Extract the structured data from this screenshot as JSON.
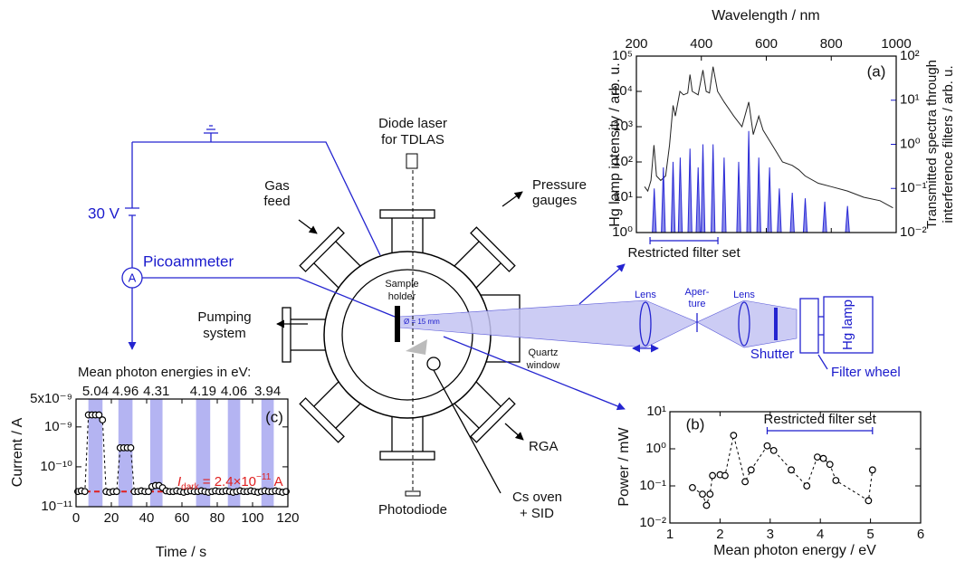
{
  "diagram": {
    "laser": [
      "Diode laser",
      "for TDLAS"
    ],
    "pressure": [
      "Pressure",
      "gauges"
    ],
    "gas": [
      "Gas",
      "feed"
    ],
    "voltage": "30 V",
    "ammeter": "Picoammeter",
    "ammeter_symbol": "A",
    "sample": [
      "Sample",
      "holder"
    ],
    "diameter": "Ø = 15 mm",
    "pumping": [
      "Pumping",
      "system"
    ],
    "window": [
      "Quartz",
      "window"
    ],
    "lens1": "Lens",
    "aperture": [
      "Aper-",
      "ture"
    ],
    "lens2": "Lens",
    "shutter": "Shutter",
    "lamp": "Hg lamp",
    "filter_wheel": "Filter wheel",
    "rga": "RGA",
    "oven": [
      "Cs oven",
      "+ SID"
    ],
    "photodiode": "Photodiode"
  },
  "chart_data": [
    {
      "type": "line",
      "label": "(a)",
      "x_label": "Wavelength / nm",
      "x_axis_position": "top",
      "y_label": "Hg lamp intensity / arb. u.",
      "y2_label": [
        "Transmitted spectra through",
        "interference filters / arb. u."
      ],
      "y2_color": "#1a1acc",
      "annotation": "Restricted filter set",
      "annotation_range": [
        242,
        451
      ],
      "xlim": [
        200,
        1000
      ],
      "xticks": [
        200,
        400,
        600,
        800,
        1000
      ],
      "log_y": true,
      "ylim": [
        1,
        100000
      ],
      "yticks": [
        {
          "value": 1,
          "label": "10⁰"
        },
        {
          "value": 10,
          "label": "10¹"
        },
        {
          "value": 100,
          "label": "10²"
        },
        {
          "value": 1000,
          "label": "10³"
        },
        {
          "value": 10000,
          "label": "10⁴"
        },
        {
          "value": 100000,
          "label": "10⁵"
        }
      ],
      "log_y2": true,
      "y2lim": [
        0.01,
        100
      ],
      "y2ticks": [
        {
          "value": 0.01,
          "label": "10⁻²"
        },
        {
          "value": 0.1,
          "label": "10⁻¹"
        },
        {
          "value": 1,
          "label": "10⁰"
        },
        {
          "value": 10,
          "label": "10¹"
        },
        {
          "value": 100,
          "label": "10²"
        }
      ],
      "series": [
        {
          "color": "#222222",
          "x": [
            225,
            235,
            245,
            254,
            262,
            275,
            290,
            302,
            313,
            320,
            334,
            345,
            358,
            365,
            372,
            390,
            405,
            415,
            425,
            436,
            450,
            470,
            500,
            525,
            546,
            560,
            577,
            590,
            610,
            630,
            650,
            680,
            700,
            720,
            760,
            800,
            850,
            900,
            950,
            990
          ],
          "values": [
            20,
            15,
            30,
            300,
            40,
            30,
            40,
            300,
            4000,
            2000,
            10000,
            8000,
            9000,
            30000,
            10000,
            8000,
            40000,
            10000,
            9000,
            50000,
            10000,
            5000,
            2000,
            1000,
            5000,
            600,
            2000,
            800,
            400,
            200,
            100,
            80,
            60,
            40,
            25,
            20,
            15,
            10,
            8,
            5
          ]
        },
        {
          "color": "#2a2ad6",
          "fill": "#8a8aea",
          "axis": "y2",
          "x": [
            249,
            255,
            261,
            277,
            283,
            289,
            307,
            313,
            319,
            329,
            335,
            341,
            359,
            365,
            371,
            384,
            390,
            396,
            399,
            405,
            411,
            430,
            436,
            442,
            464,
            470,
            476,
            509,
            515,
            521,
            540,
            546,
            552,
            571,
            577,
            583,
            604,
            610,
            616,
            634,
            640,
            646,
            674,
            680,
            686,
            714,
            720,
            726,
            774,
            780,
            786,
            844,
            850,
            856
          ],
          "values": [
            0.01,
            0.1,
            0.01,
            0.01,
            0.3,
            0.01,
            0.01,
            0.4,
            0.01,
            0.01,
            0.5,
            0.01,
            0.01,
            0.8,
            0.01,
            0.01,
            0.3,
            0.01,
            0.01,
            1,
            0.01,
            0.01,
            1,
            0.01,
            0.01,
            0.5,
            0.01,
            0.01,
            0.4,
            0.01,
            0.01,
            2,
            0.01,
            0.01,
            0.5,
            0.01,
            0.01,
            0.3,
            0.01,
            0.01,
            0.1,
            0.01,
            0.01,
            0.08,
            0.01,
            0.01,
            0.06,
            0.01,
            0.01,
            0.05,
            0.01,
            0.01,
            0.04,
            0.01
          ]
        }
      ]
    },
    {
      "type": "scatter",
      "label": "(b)",
      "x_label": "Mean photon energy / eV",
      "y_label": "Power / mW",
      "annotation": "Restricted filter set",
      "annotation_range": [
        2.94,
        5.04
      ],
      "annotation_color": "#1a1acc",
      "xlim": [
        1,
        6
      ],
      "xticks": [
        1,
        2,
        3,
        4,
        5,
        6
      ],
      "log_y": true,
      "ylim": [
        0.01,
        10
      ],
      "yticks": [
        {
          "value": 0.01,
          "label": "10⁻²"
        },
        {
          "value": 0.1,
          "label": "10⁻¹"
        },
        {
          "value": 1,
          "label": "10⁰"
        },
        {
          "value": 10,
          "label": "10¹"
        }
      ],
      "line_style": "dashed",
      "color": "#000000",
      "marker_fill": "#ffffff",
      "x": [
        1.45,
        1.65,
        1.73,
        1.8,
        1.85,
        2.0,
        2.1,
        2.27,
        2.5,
        2.62,
        2.94,
        3.07,
        3.42,
        3.73,
        3.94,
        4.06,
        4.19,
        4.31,
        4.96,
        5.04
      ],
      "values": [
        0.09,
        0.06,
        0.03,
        0.06,
        0.19,
        0.2,
        0.19,
        2.3,
        0.13,
        0.27,
        1.2,
        0.9,
        0.27,
        0.1,
        0.6,
        0.55,
        0.38,
        0.14,
        0.04,
        0.27
      ]
    },
    {
      "type": "scatter",
      "label": "(c)",
      "x_label": "Time / s",
      "y_label": "Current / A",
      "bands_title": "Mean photon energies in eV:",
      "band_color": "#b4b4f2",
      "band_text_color": "#1a1acc",
      "bands": [
        {
          "label": "5.04",
          "start": 7,
          "end": 15
        },
        {
          "label": "4.96",
          "start": 24,
          "end": 32
        },
        {
          "label": "4.31",
          "start": 42,
          "end": 49
        },
        {
          "label": "4.19",
          "start": 68,
          "end": 76
        },
        {
          "label": "4.06",
          "start": 86,
          "end": 93
        },
        {
          "label": "3.94",
          "start": 105,
          "end": 112
        }
      ],
      "dark_current": 2.4e-11,
      "dark_color": "#e02020",
      "dark_label": [
        "I",
        "dark",
        " = 2.4×10",
        "−11",
        " A"
      ],
      "xlim": [
        0,
        120
      ],
      "xticks": [
        0,
        20,
        40,
        60,
        80,
        100,
        120
      ],
      "log_y": true,
      "ylim": [
        1e-11,
        5e-09
      ],
      "yticks": [
        {
          "value": 1e-11,
          "label": "10⁻¹¹"
        },
        {
          "value": 1e-10,
          "label": "10⁻¹⁰"
        },
        {
          "value": 1e-09,
          "label": "10⁻⁹"
        },
        {
          "value": 5e-09,
          "label": "5x10⁻⁹"
        }
      ],
      "line_style": "dashed",
      "color": "#000000",
      "marker_fill": "#ffffff",
      "x": [
        1,
        3,
        5,
        7,
        9,
        11,
        13,
        15,
        17,
        19,
        21,
        23,
        25,
        27,
        29,
        31,
        33,
        35,
        37,
        39,
        41,
        43,
        45,
        47,
        49,
        51,
        53,
        55,
        57,
        59,
        61,
        63,
        65,
        67,
        69,
        71,
        73,
        75,
        77,
        79,
        81,
        83,
        85,
        87,
        89,
        91,
        93,
        95,
        97,
        99,
        101,
        103,
        105,
        107,
        109,
        111,
        113,
        115,
        117,
        119
      ],
      "values": [
        2.4e-11,
        2.5e-11,
        2.4e-11,
        2e-09,
        2e-09,
        2e-09,
        2e-09,
        1.5e-09,
        2.4e-11,
        2.3e-11,
        2.4e-11,
        2.4e-11,
        3e-10,
        3e-10,
        3e-10,
        3e-10,
        2.4e-11,
        2.4e-11,
        2.5e-11,
        2.4e-11,
        2.4e-11,
        3.2e-11,
        3.4e-11,
        3.4e-11,
        3e-11,
        2.5e-11,
        2.4e-11,
        2.4e-11,
        2.5e-11,
        2.4e-11,
        2.3e-11,
        2.4e-11,
        2.5e-11,
        2.4e-11,
        2.4e-11,
        2.5e-11,
        2.4e-11,
        2.3e-11,
        2.4e-11,
        2.5e-11,
        2.4e-11,
        2.4e-11,
        2.5e-11,
        2.4e-11,
        2.3e-11,
        2.4e-11,
        2.5e-11,
        2.4e-11,
        2.4e-11,
        2.5e-11,
        2.4e-11,
        2.3e-11,
        2.4e-11,
        2.5e-11,
        2.4e-11,
        2.4e-11,
        2.5e-11,
        2.4e-11,
        2.3e-11,
        2.4e-11
      ]
    }
  ]
}
